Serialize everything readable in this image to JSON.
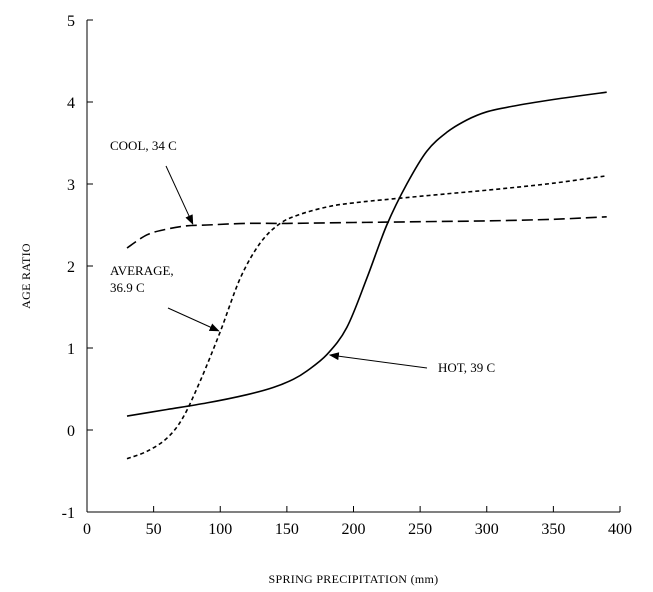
{
  "chart_data": {
    "type": "line",
    "title": "",
    "xlabel": "SPRING PRECIPITATION (mm)",
    "ylabel": "AGE RATIO",
    "xlim": [
      0,
      400
    ],
    "ylim": [
      -1,
      5
    ],
    "xticks": [
      0,
      50,
      100,
      150,
      200,
      250,
      300,
      350,
      400
    ],
    "yticks": [
      -1,
      0,
      1,
      2,
      3,
      4,
      5
    ],
    "grid": false,
    "series": [
      {
        "name": "COOL, 34 C",
        "dash": "long-dash",
        "x": [
          30,
          45,
          60,
          75,
          90,
          120,
          150,
          200,
          250,
          300,
          350,
          390
        ],
        "y": [
          2.22,
          2.38,
          2.45,
          2.49,
          2.5,
          2.52,
          2.52,
          2.53,
          2.54,
          2.55,
          2.57,
          2.6
        ]
      },
      {
        "name": "AVERAGE, 36.9 C",
        "dash": "short-dash",
        "x": [
          30,
          45,
          60,
          72,
          85,
          100,
          115,
          130,
          145,
          160,
          180,
          200,
          230,
          270,
          310,
          350,
          390
        ],
        "y": [
          -0.35,
          -0.26,
          -0.1,
          0.15,
          0.6,
          1.2,
          1.85,
          2.28,
          2.52,
          2.63,
          2.72,
          2.77,
          2.82,
          2.88,
          2.94,
          3.01,
          3.1
        ]
      },
      {
        "name": "HOT, 39 C",
        "dash": "solid",
        "x": [
          30,
          60,
          90,
          120,
          140,
          155,
          165,
          180,
          195,
          210,
          225,
          240,
          255,
          270,
          285,
          300,
          320,
          350,
          390
        ],
        "y": [
          0.17,
          0.25,
          0.33,
          0.43,
          0.52,
          0.62,
          0.72,
          0.92,
          1.25,
          1.85,
          2.5,
          3.0,
          3.4,
          3.63,
          3.78,
          3.88,
          3.95,
          4.03,
          4.12
        ]
      }
    ],
    "annotations": [
      {
        "text": "COOL, 34 C",
        "lines": [
          "COOL, 34 C"
        ],
        "target": [
          80,
          2.49
        ],
        "series": 0
      },
      {
        "text": "AVERAGE, 36.9 C",
        "lines": [
          "AVERAGE,",
          "36.9 C"
        ],
        "target": [
          100,
          1.2
        ],
        "series": 1
      },
      {
        "text": "HOT, 39 C",
        "lines": [
          "HOT, 39 C"
        ],
        "target": [
          180,
          0.92
        ],
        "series": 2
      }
    ]
  }
}
